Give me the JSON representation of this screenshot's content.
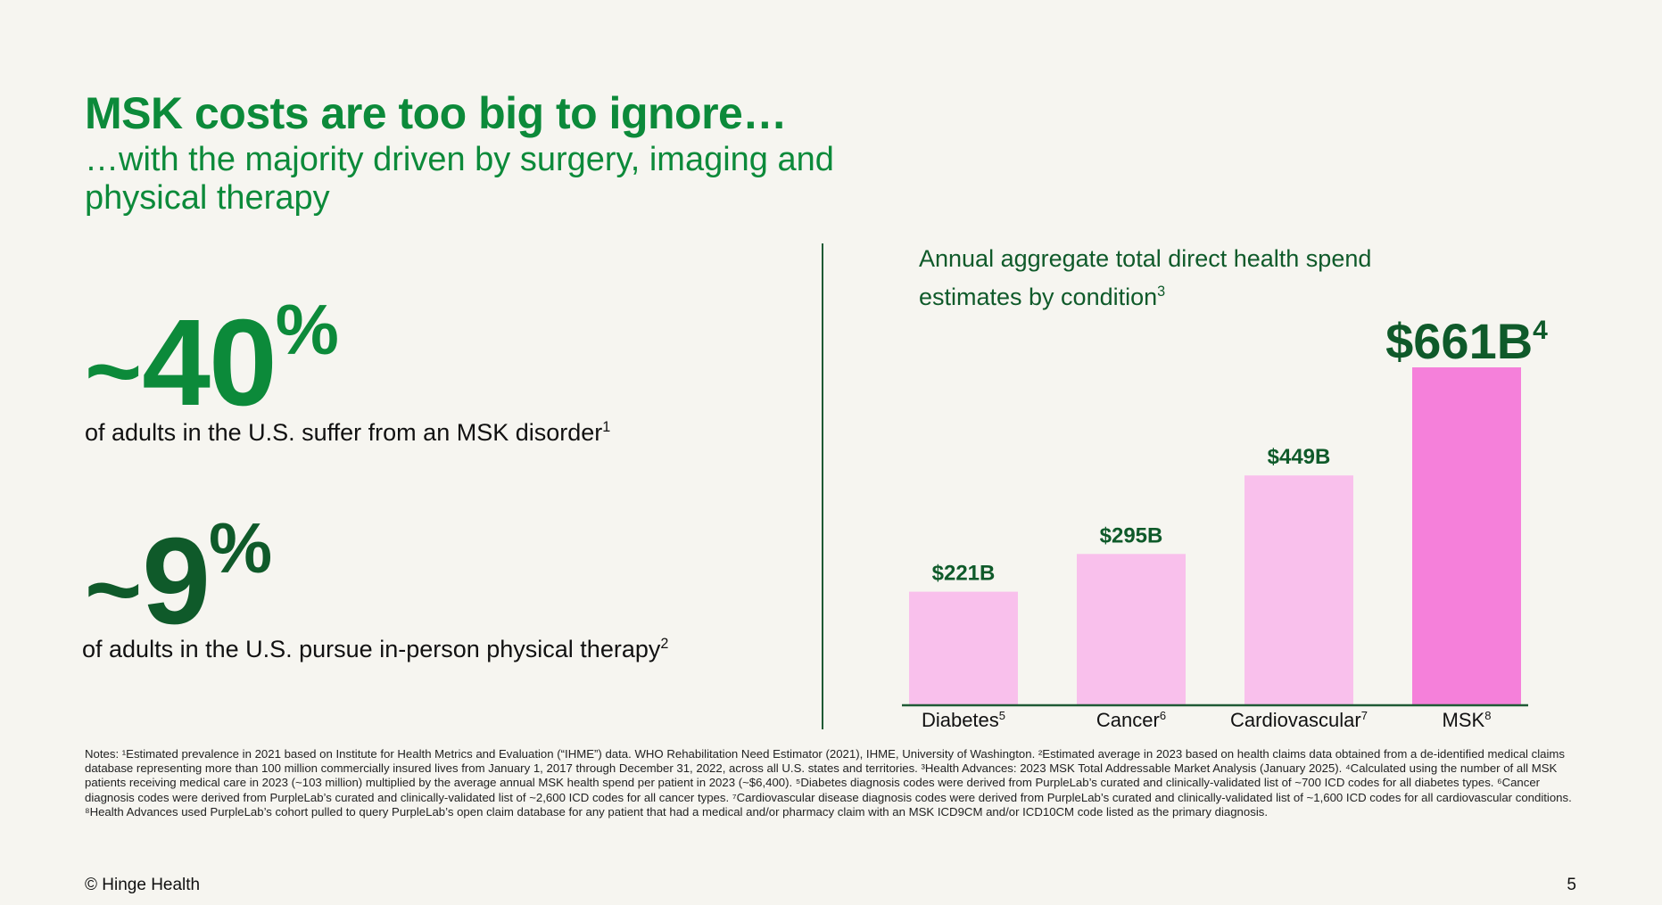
{
  "header": {
    "title": "MSK costs are too big to ignore…",
    "subtitle": "…with the majority driven by surgery, imaging and physical therapy"
  },
  "stats": [
    {
      "prefix": "~",
      "number": "40",
      "suffix": "%",
      "description": "of adults in the U.S. suffer from an MSK disorder",
      "footnote": "1"
    },
    {
      "prefix": "~",
      "number": "9",
      "suffix": "%",
      "description": "of adults in the U.S. pursue in-person physical therapy",
      "footnote": "2"
    }
  ],
  "chart_data": {
    "type": "bar",
    "title": "Annual aggregate total direct health spend estimates by condition",
    "title_footnote": "3",
    "categories": [
      "Diabetes",
      "Cancer",
      "Cardiovascular",
      "MSK"
    ],
    "category_footnotes": [
      "5",
      "6",
      "7",
      "8"
    ],
    "values": [
      221,
      295,
      449,
      661
    ],
    "value_labels": [
      "$221B",
      "$295B",
      "$449B",
      "$661B"
    ],
    "value_label_footnotes": [
      "",
      "",
      "",
      "4"
    ],
    "unit": "B",
    "ylim": [
      0,
      661
    ],
    "grid": false,
    "colors": [
      "#f9c0ec",
      "#f9c0ec",
      "#f9c0ec",
      "#f580da"
    ]
  },
  "notes": "Notes: ¹Estimated prevalence in 2021 based on Institute for Health Metrics and Evaluation (“IHME”) data. WHO Rehabilitation Need Estimator (2021), IHME, University of Washington. ²Estimated average in 2023 based on health claims data obtained from a de-identified medical claims database representing more than 100 million commercially insured lives from January 1, 2017 through December 31, 2022, across all U.S. states and territories. ³Health Advances: 2023 MSK Total Addressable Market Analysis (January 2025). ⁴Calculated using the number of all MSK patients receiving medical care in 2023 (~103 million) multiplied by the average annual MSK health spend per patient in 2023 (~$6,400). ⁵Diabetes diagnosis codes were derived from PurpleLab’s curated and clinically-validated list of ~700 ICD codes for all diabetes types. ⁶Cancer diagnosis codes were derived from PurpleLab’s curated and clinically-validated list of ~2,600 ICD codes for all cancer types. ⁷Cardiovascular disease diagnosis codes were derived from PurpleLab’s curated and clinically-validated list of ~1,600 ICD codes for all cardiovascular conditions. ⁸Health Advances used PurpleLab’s cohort pulled to query PurpleLab’s open claim database for any patient that had a medical and/or pharmacy claim with an MSK ICD9CM and/or ICD10CM code listed as the primary diagnosis.",
  "footer": {
    "copyright": "© Hinge Health",
    "page_number": "5"
  },
  "theme": {
    "primary_green": "#0c8a3a",
    "dark_green": "#0f5a2a",
    "background": "#f6f5f0"
  }
}
